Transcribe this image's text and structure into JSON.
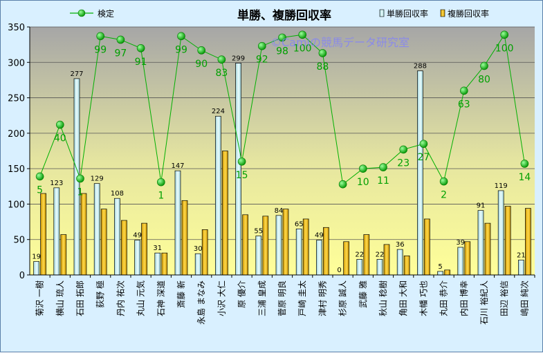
{
  "chart_data": {
    "type": "bar+line",
    "title": "単勝、複勝回収率",
    "watermark": "©Camiの競馬データ研究室",
    "categories": [
      "菊沢 一樹",
      "横山 琉人",
      "石田 拓郎",
      "荻野 極",
      "丹内 祐次",
      "丸山 元気",
      "石神 深道",
      "斎藤 新",
      "永島 まなみ",
      "小沢 大仁",
      "原 優介",
      "三浦 皇成",
      "菅原 明良",
      "戸崎 圭太",
      "津村 明秀",
      "杉原 誠人",
      "武藤 雅",
      "秋山 稔樹",
      "角田 大和",
      "木幡 巧也",
      "丸田 恭介",
      "内田 博幸",
      "石川 裕紀人",
      "田辺 裕信",
      "嶋田 純次"
    ],
    "ylim": [
      0,
      350
    ],
    "yticks": [
      0,
      50,
      100,
      150,
      200,
      250,
      300,
      350
    ],
    "series": [
      {
        "name": "単勝回収率",
        "kind": "bar",
        "color": "#cfeef0",
        "values": [
          19,
          123,
          277,
          129,
          108,
          49,
          31,
          147,
          30,
          224,
          299,
          55,
          84,
          65,
          49,
          0,
          22,
          22,
          36,
          288,
          5,
          39,
          91,
          119,
          21
        ]
      },
      {
        "name": "複勝回収率",
        "kind": "bar",
        "color": "#e8b828",
        "values": [
          115,
          57,
          115,
          93,
          77,
          73,
          31,
          105,
          64,
          175,
          85,
          83,
          93,
          79,
          67,
          47,
          57,
          43,
          27,
          79,
          7,
          47,
          73,
          97,
          94
        ]
      },
      {
        "name": "検定",
        "kind": "line",
        "color": "#00b000",
        "plot_values": [
          139,
          212,
          136,
          337,
          332,
          320,
          131,
          337,
          317,
          304,
          160,
          323,
          335,
          339,
          313,
          128,
          150,
          152,
          177,
          185,
          132,
          260,
          295,
          339,
          157
        ],
        "labels": [
          5,
          40,
          1,
          99,
          97,
          91,
          1,
          99,
          90,
          83,
          15,
          92,
          98,
          100,
          88,
          null,
          10,
          11,
          23,
          27,
          2,
          63,
          80,
          100,
          14
        ]
      }
    ],
    "legend": [
      "検定",
      "単勝回収率",
      "複勝回収率"
    ]
  }
}
